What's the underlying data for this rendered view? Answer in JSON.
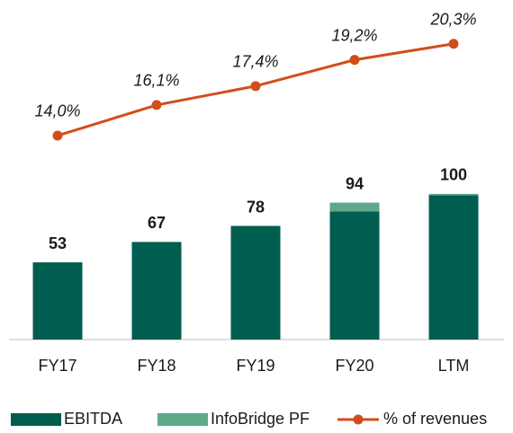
{
  "chart_data": {
    "type": "bar",
    "categories": [
      "FY17",
      "FY18",
      "FY19",
      "FY20",
      "LTM"
    ],
    "series": [
      {
        "name": "EBITDA",
        "color": "#005e50",
        "values": [
          53,
          67,
          78,
          88,
          99
        ],
        "stack": true
      },
      {
        "name": "InfoBridge PF",
        "color": "#5fa88a",
        "values": [
          0,
          0,
          0,
          6,
          1
        ],
        "stack": true
      },
      {
        "name": "% of revenues",
        "color": "#d24d1b",
        "type": "line",
        "axis": "y2",
        "values": [
          14.0,
          16.1,
          17.4,
          19.2,
          20.3
        ],
        "value_labels": [
          "14,0%",
          "16,1%",
          "17,4%",
          "19,2%",
          "20,3%"
        ]
      }
    ],
    "totals": [
      53,
      67,
      78,
      94,
      100
    ],
    "ylim": [
      0,
      230
    ],
    "y2lim": [
      0,
      23
    ],
    "legend": "bottom"
  }
}
